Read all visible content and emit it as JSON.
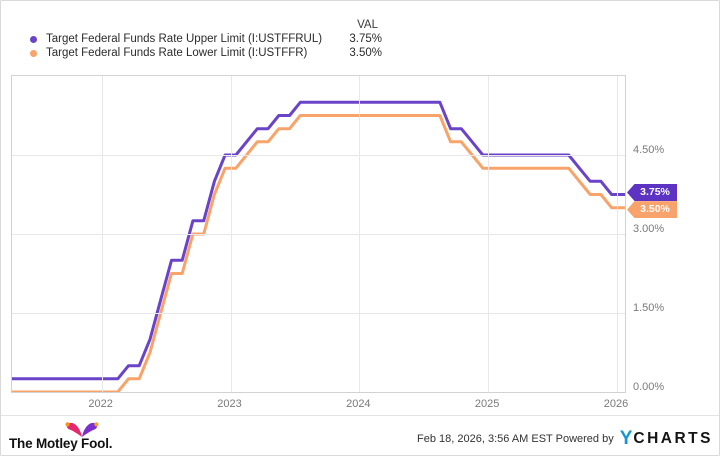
{
  "accent_colors": {
    "purple": "#6A43C8",
    "purple_tag": "#5D33C4",
    "orange": "#F8A369",
    "orange_tag": "#F9A36C",
    "ycharts_blue": "#1496D6",
    "fool_pink": "#E5296E",
    "fool_purple": "#7B2FD0",
    "fool_ball": "#F7A421"
  },
  "legend": {
    "val_header": "VAL",
    "items": [
      {
        "label": "Target Federal Funds Rate Upper Limit (I:USTFFRUL)",
        "value": "3.75%",
        "color": "#6A43C8"
      },
      {
        "label": "Target Federal Funds Rate Lower Limit (I:USTFFR)",
        "value": "3.50%",
        "color": "#F8A369"
      }
    ]
  },
  "chart_data": {
    "type": "line",
    "title": "",
    "xlabel": "",
    "ylabel": "",
    "grid": true,
    "legend_position": "top-left",
    "xlim": [
      2021.304,
      2026.062
    ],
    "ylim": [
      0,
      6
    ],
    "x_ticks": [
      {
        "value": 2022,
        "label": "2022"
      },
      {
        "value": 2023,
        "label": "2023"
      },
      {
        "value": 2024,
        "label": "2024"
      },
      {
        "value": 2025,
        "label": "2025"
      },
      {
        "value": 2026,
        "label": "2026"
      }
    ],
    "y_ticks": [
      {
        "value": 0.0,
        "label": "0.00%"
      },
      {
        "value": 1.5,
        "label": "1.50%"
      },
      {
        "value": 3.0,
        "label": "3.00%"
      },
      {
        "value": 4.5,
        "label": "4.50%"
      }
    ],
    "monthly_start": "2021-04",
    "series": [
      {
        "name": "Target Federal Funds Rate Upper Limit",
        "id": "I:USTFFRUL",
        "color": "#6A43C8",
        "tag_color": "#5D33C4",
        "end_label": "3.75%",
        "end_value": 3.75,
        "tag_offset": -1,
        "values": [
          0.25,
          0.25,
          0.25,
          0.25,
          0.25,
          0.25,
          0.25,
          0.25,
          0.25,
          0.25,
          0.25,
          0.5,
          0.5,
          1.0,
          1.75,
          2.5,
          2.5,
          3.25,
          3.25,
          4.0,
          4.5,
          4.5,
          4.75,
          5.0,
          5.0,
          5.25,
          5.25,
          5.5,
          5.5,
          5.5,
          5.5,
          5.5,
          5.5,
          5.5,
          5.5,
          5.5,
          5.5,
          5.5,
          5.5,
          5.5,
          5.5,
          5.0,
          5.0,
          4.75,
          4.5,
          4.5,
          4.5,
          4.5,
          4.5,
          4.5,
          4.5,
          4.5,
          4.5,
          4.25,
          4.0,
          4.0,
          3.75,
          3.75,
          3.75
        ]
      },
      {
        "name": "Target Federal Funds Rate Lower Limit",
        "id": "I:USTFFR",
        "color": "#F8A369",
        "tag_color": "#F9A36C",
        "end_label": "3.50%",
        "end_value": 3.5,
        "tag_offset": 3,
        "values": [
          0.0,
          0.0,
          0.0,
          0.0,
          0.0,
          0.0,
          0.0,
          0.0,
          0.0,
          0.0,
          0.0,
          0.25,
          0.25,
          0.75,
          1.5,
          2.25,
          2.25,
          3.0,
          3.0,
          3.75,
          4.25,
          4.25,
          4.5,
          4.75,
          4.75,
          5.0,
          5.0,
          5.25,
          5.25,
          5.25,
          5.25,
          5.25,
          5.25,
          5.25,
          5.25,
          5.25,
          5.25,
          5.25,
          5.25,
          5.25,
          5.25,
          4.75,
          4.75,
          4.5,
          4.25,
          4.25,
          4.25,
          4.25,
          4.25,
          4.25,
          4.25,
          4.25,
          4.25,
          4.0,
          3.75,
          3.75,
          3.5,
          3.5,
          3.5
        ]
      }
    ]
  },
  "footer": {
    "brand": "The Motley Fool.",
    "timestamp": "Feb 18, 2026, 3:56 AM EST",
    "powered_by": "Powered by",
    "ycharts_y": "Y",
    "ycharts_charts": "CHARTS"
  }
}
